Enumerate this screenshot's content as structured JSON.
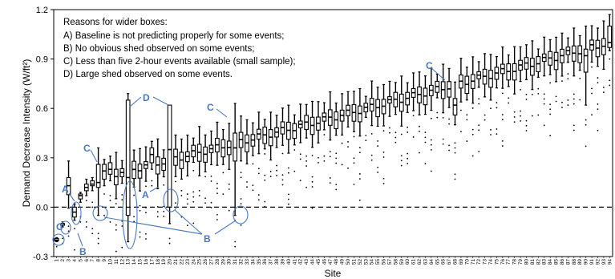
{
  "chart_data": {
    "type": "box",
    "xlabel": "Site",
    "ylabel": "Demand Decrease Intensity (W/ft²)",
    "ylim": [
      -0.3,
      1.2
    ],
    "yticks": [
      "-0.3",
      "0.0",
      "0.3",
      "0.6",
      "0.9",
      "1.2"
    ],
    "ytick_values": [
      -0.3,
      0.0,
      0.3,
      0.6,
      0.9,
      1.2
    ],
    "reference_line": {
      "y": 0.0,
      "style": "dashed"
    },
    "sites": [
      "1",
      "2",
      "3",
      "4",
      "5",
      "6",
      "7",
      "8",
      "9",
      "10",
      "11",
      "12",
      "13",
      "14",
      "15",
      "16",
      "17",
      "18",
      "19",
      "20",
      "21",
      "22",
      "23",
      "24",
      "25",
      "26",
      "27",
      "28",
      "29",
      "30",
      "31",
      "32",
      "33",
      "34",
      "35",
      "36",
      "37",
      "38",
      "39",
      "40",
      "41",
      "42",
      "43",
      "44",
      "45",
      "46",
      "47",
      "48",
      "49",
      "50",
      "51",
      "52",
      "53",
      "54",
      "55",
      "56",
      "57",
      "58",
      "59",
      "60",
      "61",
      "62",
      "63",
      "64",
      "65",
      "66",
      "67",
      "68",
      "69",
      "70",
      "71",
      "72",
      "73",
      "74",
      "75",
      "76",
      "77",
      "78",
      "79",
      "80",
      "81",
      "82",
      "83",
      "84",
      "85",
      "86",
      "87",
      "88",
      "89",
      "90",
      "91",
      "92",
      "93",
      "94"
    ],
    "notes": {
      "title": "Reasons for wider boxes:",
      "items": [
        "A) Baseline is not predicting properly for some events;",
        "B) No obvious shed observed on some events;",
        "C) Less than five 2-hour events available (small sample);",
        "D) Large shed observed on some events."
      ]
    },
    "annotation_letters": [
      "A",
      "A",
      "B",
      "B",
      "C",
      "C",
      "C",
      "C",
      "D"
    ]
  }
}
